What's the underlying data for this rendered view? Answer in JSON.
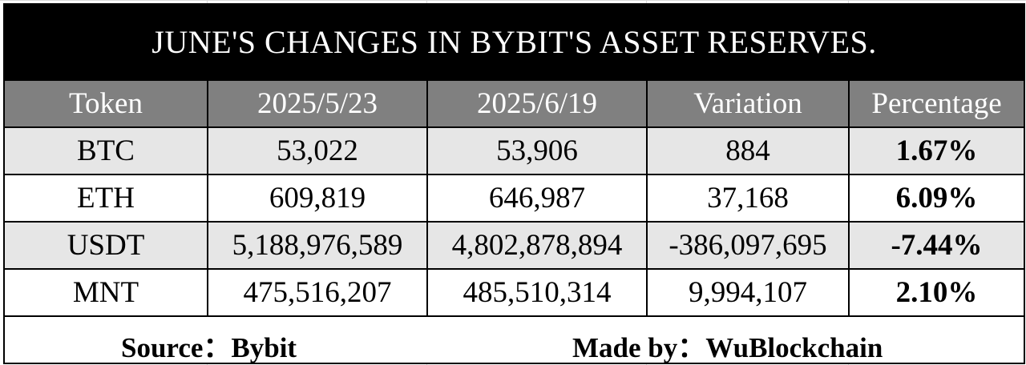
{
  "table": {
    "title": "JUNE'S CHANGES IN BYBIT'S ASSET RESERVES.",
    "columns": [
      "Token",
      "2025/5/23",
      "2025/6/19",
      "Variation",
      "Percentage"
    ],
    "rows": [
      {
        "token": "BTC",
        "d1": "53,022",
        "d2": "53,906",
        "variation": "884",
        "percentage": "1.67%"
      },
      {
        "token": "ETH",
        "d1": "609,819",
        "d2": "646,987",
        "variation": "37,168",
        "percentage": "6.09%"
      },
      {
        "token": "USDT",
        "d1": "5,188,976,589",
        "d2": "4,802,878,894",
        "variation": "-386,097,695",
        "percentage": "-7.44%"
      },
      {
        "token": "MNT",
        "d1": "475,516,207",
        "d2": "485,510,314",
        "variation": "9,994,107",
        "percentage": "2.10%"
      }
    ],
    "footer": {
      "source": "Source：Bybit",
      "made_by": "Made by：WuBlockchain"
    }
  },
  "colors": {
    "title_background": "#000000",
    "header_background": "#808080",
    "shaded_row_background": "#e6e6e6",
    "text": "#000000"
  }
}
